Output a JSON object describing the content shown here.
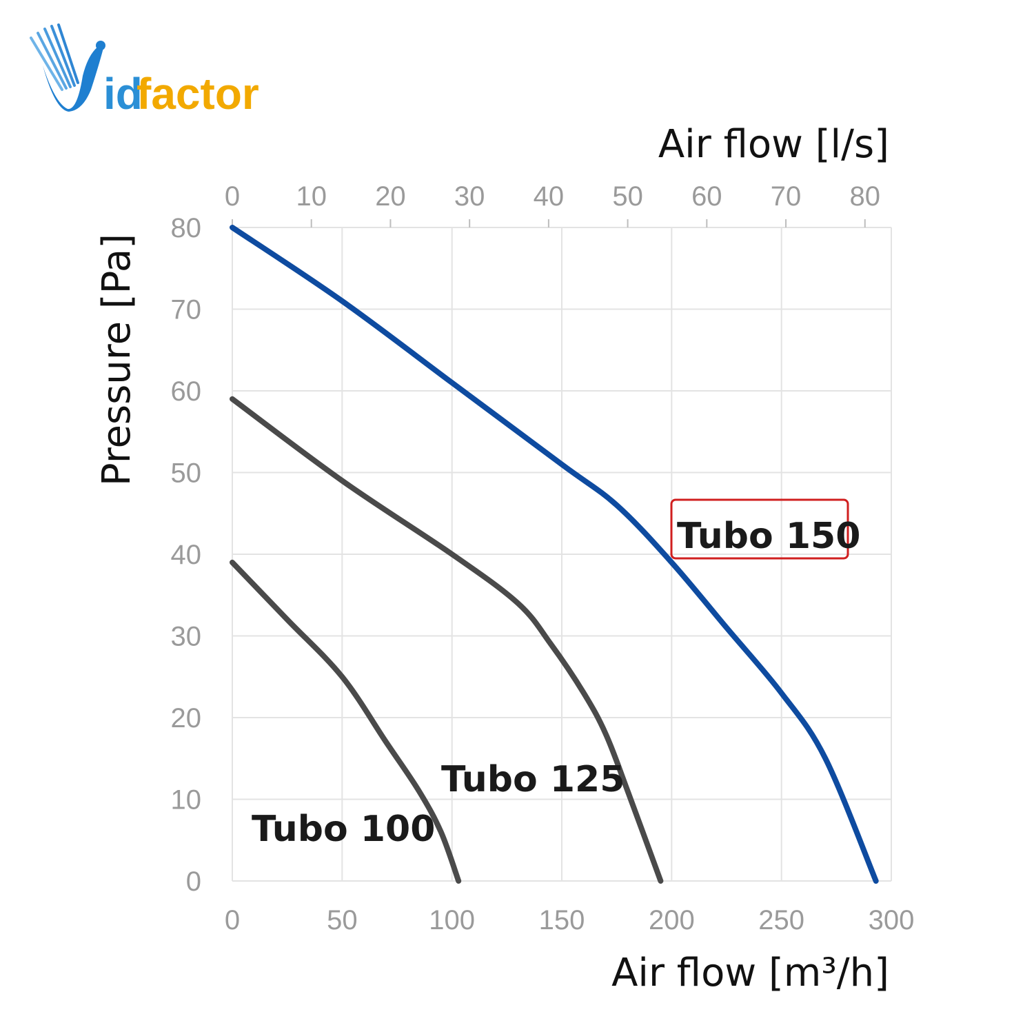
{
  "brand": {
    "name_prefix": "id",
    "name_suffix": "factor",
    "color_primary": "#2b8fd6",
    "color_secondary": "#f2a900"
  },
  "chart_data": {
    "type": "line",
    "title": "",
    "xlabel": "Air flow [m³/h]",
    "x2label": "Air flow [l/s]",
    "ylabel": "Pressure [Pa]",
    "xlim": [
      0,
      300
    ],
    "ylim": [
      0,
      80
    ],
    "x2lim": [
      0,
      83.33
    ],
    "x_ticks": [
      0,
      50,
      100,
      150,
      200,
      250,
      300
    ],
    "x2_ticks": [
      0,
      10,
      20,
      30,
      40,
      50,
      60,
      70,
      80
    ],
    "y_ticks": [
      0,
      10,
      20,
      30,
      40,
      50,
      60,
      70,
      80
    ],
    "grid": true,
    "series": [
      {
        "name": "Tubo 100",
        "color": "#4a4a4a",
        "x": [
          0,
          25,
          50,
          70,
          85,
          95,
          103
        ],
        "y": [
          39,
          32,
          25,
          17,
          11,
          6,
          0
        ]
      },
      {
        "name": "Tubo 125",
        "color": "#4a4a4a",
        "x": [
          0,
          50,
          100,
          130,
          145,
          160,
          170,
          180,
          195
        ],
        "y": [
          59,
          49,
          40,
          34,
          29,
          23,
          18,
          11,
          0
        ]
      },
      {
        "name": "Tubo 150",
        "color": "#0e4ba0",
        "highlighted": true,
        "highlight_color": "#d01f1f",
        "x": [
          0,
          50,
          100,
          150,
          175,
          200,
          225,
          250,
          270,
          293
        ],
        "y": [
          80,
          71,
          61,
          51,
          46,
          39,
          31,
          23,
          15,
          0
        ]
      }
    ]
  }
}
